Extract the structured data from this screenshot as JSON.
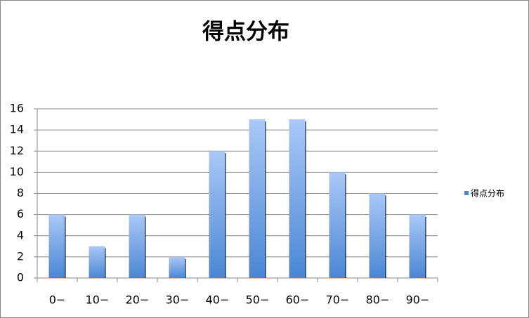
{
  "chart_data": {
    "type": "bar",
    "title": "得点分布",
    "categories": [
      "0−",
      "10−",
      "20−",
      "30−",
      "40−",
      "50−",
      "60−",
      "70−",
      "80−",
      "90−"
    ],
    "series": [
      {
        "name": "得点分布",
        "color": "#4a86d4",
        "values": [
          6,
          3,
          6,
          2,
          12,
          15,
          15,
          10,
          8,
          6
        ]
      }
    ],
    "ylim": [
      0,
      16
    ],
    "yticks": [
      0,
      2,
      4,
      6,
      8,
      10,
      12,
      14,
      16
    ],
    "grid": true,
    "legend": "right"
  }
}
